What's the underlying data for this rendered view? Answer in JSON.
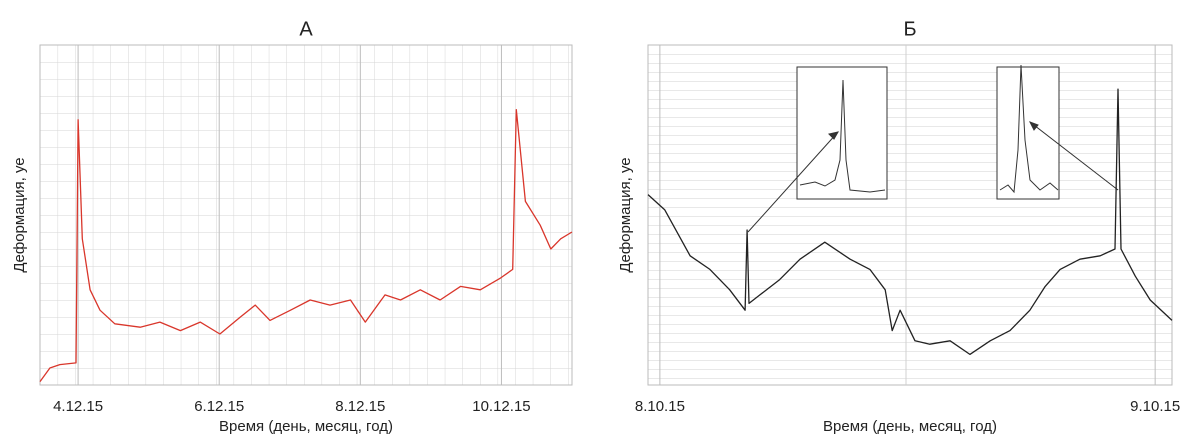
{
  "chart_data": [
    {
      "type": "line",
      "title": "А",
      "x_label": "Время (день, месяц, год)",
      "y_label": "Деформация, уе",
      "xlim": [
        3.46,
        11.0
      ],
      "ylim": [
        0,
        100
      ],
      "xticks": [
        {
          "value": 4,
          "label": "4.12.15"
        },
        {
          "value": 6,
          "label": "6.12.15"
        },
        {
          "value": 8,
          "label": "8.12.15"
        },
        {
          "value": 10,
          "label": "10.12.15"
        }
      ],
      "grid": true,
      "series": [
        {
          "color": "#d9362b",
          "x": [
            3.46,
            3.6,
            3.74,
            3.97,
            4.0,
            4.06,
            4.17,
            4.31,
            4.52,
            4.88,
            5.16,
            5.45,
            5.73,
            6.01,
            6.3,
            6.51,
            6.72,
            7.01,
            7.29,
            7.57,
            7.86,
            8.07,
            8.35,
            8.57,
            8.85,
            9.13,
            9.42,
            9.7,
            9.99,
            10.16,
            10.21,
            10.34,
            10.55,
            10.7,
            10.84,
            11.0
          ],
          "values": [
            1,
            5,
            6,
            6.5,
            78,
            43,
            28,
            22,
            18,
            17,
            18.5,
            16,
            18.5,
            15,
            20,
            23.5,
            19,
            22,
            25,
            23.5,
            25,
            18.5,
            26.5,
            25,
            28,
            25,
            29,
            28,
            31.5,
            34,
            81,
            54,
            47,
            40,
            43,
            45
          ]
        }
      ]
    },
    {
      "type": "line",
      "title": "Б",
      "x_label": "Время (день, месяц, год)",
      "y_label": "Деформация, уе",
      "xlim": [
        7.976,
        9.034
      ],
      "ylim": [
        0,
        100
      ],
      "xticks": [
        {
          "value": 8,
          "label": "8.10.15"
        },
        {
          "value": 9,
          "label": "9.10.15"
        }
      ],
      "grid": true,
      "series": [
        {
          "color": "#222222",
          "x": [
            7.976,
            8.01,
            8.061,
            8.101,
            8.141,
            8.172,
            8.176,
            8.18,
            8.202,
            8.242,
            8.283,
            8.333,
            8.384,
            8.424,
            8.455,
            8.469,
            8.485,
            8.515,
            8.545,
            8.586,
            8.626,
            8.667,
            8.707,
            8.747,
            8.778,
            8.808,
            8.848,
            8.889,
            8.919,
            8.925,
            8.931,
            8.96,
            8.99,
            9.034
          ],
          "values": [
            56,
            51.5,
            38,
            34,
            28,
            22,
            45.6,
            24,
            26.5,
            31,
            37,
            42,
            37,
            34,
            28,
            16,
            22,
            13,
            12,
            13,
            9,
            13,
            16,
            22,
            29,
            34,
            37,
            38,
            40,
            87,
            40,
            32,
            25,
            19
          ]
        }
      ]
    }
  ]
}
